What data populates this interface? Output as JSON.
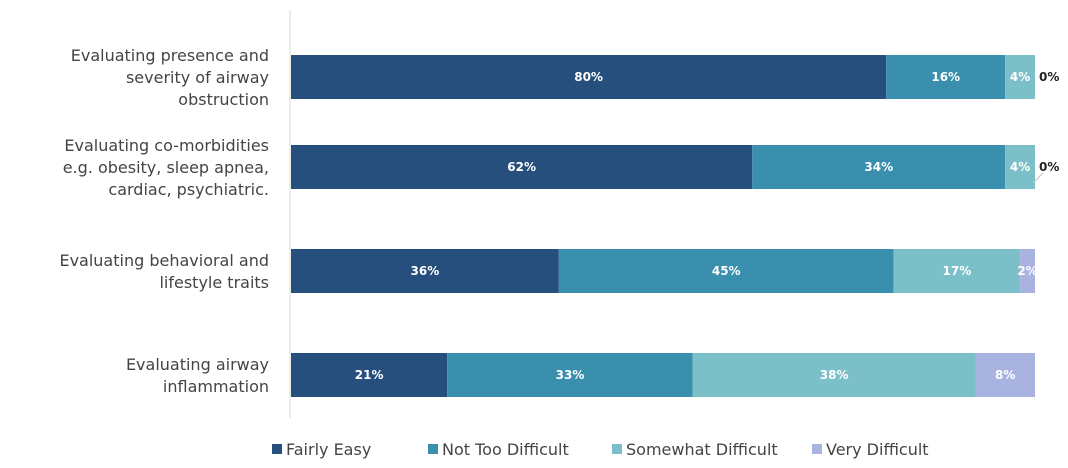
{
  "chart_data": {
    "type": "bar",
    "orientation": "horizontal",
    "stacked": true,
    "percent_stacked": true,
    "categories": [
      "Evaluating presence and severity of airway obstruction",
      "Evaluating co-morbidities e.g. obesity, sleep apnea, cardiac, psychiatric.",
      "Evaluating behavioral and lifestyle traits",
      "Evaluating airway inflammation"
    ],
    "category_lines": [
      [
        "Evaluating presence and",
        "severity of airway",
        "obstruction"
      ],
      [
        "Evaluating co-morbidities",
        "e.g. obesity, sleep apnea,",
        "cardiac, psychiatric."
      ],
      [
        "Evaluating behavioral and",
        "lifestyle traits"
      ],
      [
        "Evaluating airway",
        "inflammation"
      ]
    ],
    "series": [
      {
        "name": "Fairly Easy",
        "color": "#274f7d",
        "values": [
          80,
          62,
          36,
          21
        ],
        "labels": [
          "80%",
          "62%",
          "36%",
          "21%"
        ]
      },
      {
        "name": "Not Too Difficult",
        "color": "#3a8fae",
        "values": [
          16,
          34,
          45,
          33
        ],
        "labels": [
          "16%",
          "34%",
          "45%",
          "33%"
        ]
      },
      {
        "name": "Somewhat Difficult",
        "color": "#7bbfc9",
        "values": [
          4,
          4,
          17,
          38
        ],
        "labels": [
          "4%",
          "4%",
          "17%",
          "38%"
        ]
      },
      {
        "name": "Very Difficult",
        "color": "#a9b3e0",
        "values": [
          0,
          0,
          2,
          8
        ],
        "labels": [
          "0%",
          "0%",
          "2%",
          "8%"
        ]
      }
    ],
    "xlim": [
      0,
      100
    ],
    "legend_position": "bottom",
    "grid": false
  }
}
